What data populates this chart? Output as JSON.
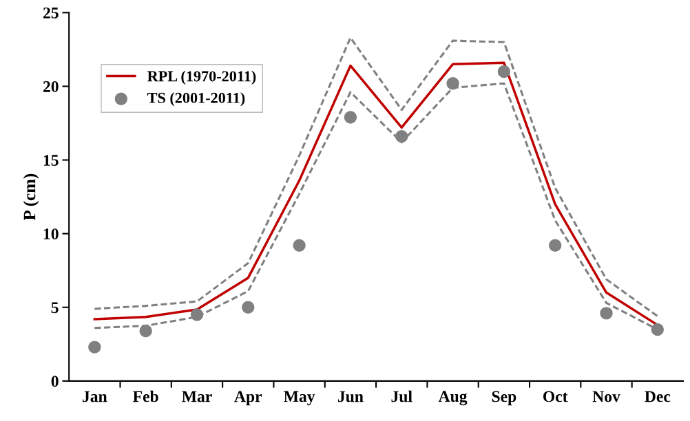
{
  "chart_data": {
    "type": "line",
    "ylabel": "P (cm)",
    "categories": [
      "Jan",
      "Feb",
      "Mar",
      "Apr",
      "May",
      "Jun",
      "Jul",
      "Aug",
      "Sep",
      "Oct",
      "Nov",
      "Dec"
    ],
    "series": [
      {
        "name": "RPL (1970-2011)",
        "color": "#c00000",
        "line_style": "solid",
        "values": [
          4.2,
          4.35,
          4.85,
          7.0,
          13.6,
          21.4,
          17.2,
          21.5,
          21.6,
          12.0,
          6.0,
          3.8
        ]
      },
      {
        "color": "#808080",
        "line_style": "dashed",
        "values": [
          4.9,
          5.1,
          5.4,
          8.0,
          15.3,
          23.3,
          18.4,
          23.1,
          23.0,
          13.1,
          6.9,
          4.4
        ]
      },
      {
        "color": "#808080",
        "line_style": "dashed",
        "values": [
          3.6,
          3.75,
          4.35,
          6.1,
          12.7,
          19.6,
          16.2,
          19.9,
          20.2,
          10.9,
          5.3,
          3.5
        ]
      },
      {
        "name": "TS (2001-2011)",
        "type": "scatter",
        "color": "#808080",
        "marker": "circle",
        "values": [
          2.3,
          3.4,
          4.5,
          5.0,
          9.2,
          17.9,
          16.6,
          20.2,
          21.0,
          9.2,
          4.6,
          3.5
        ]
      }
    ],
    "ylim": [
      0,
      25
    ],
    "yticks": [
      0,
      5,
      10,
      15,
      20,
      25
    ],
    "grid": false,
    "legend": "top left"
  }
}
